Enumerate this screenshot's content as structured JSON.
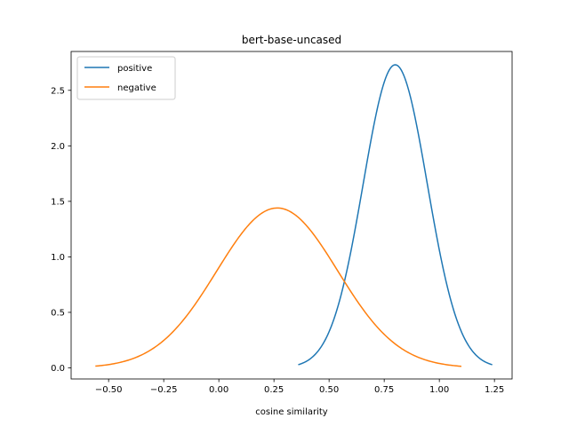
{
  "chart_data": {
    "type": "line",
    "title": "bert-base-uncased",
    "xlabel": "cosine similarity",
    "ylabel": "",
    "xlim": [
      -0.67,
      1.33
    ],
    "ylim": [
      -0.1,
      2.85
    ],
    "xticks": [
      -0.5,
      -0.25,
      0.0,
      0.25,
      0.5,
      0.75,
      1.0,
      1.25
    ],
    "xtick_labels": [
      "−0.50",
      "−0.25",
      "0.00",
      "0.25",
      "0.50",
      "0.75",
      "1.00",
      "1.25"
    ],
    "yticks": [
      0.0,
      0.5,
      1.0,
      1.5,
      2.0,
      2.5
    ],
    "ytick_labels": [
      "0.0",
      "0.5",
      "1.0",
      "1.5",
      "2.0",
      "2.5"
    ],
    "grid": false,
    "legend_position": "top-left",
    "series": [
      {
        "name": "positive",
        "color": "#1f77b4",
        "x_range": [
          0.36,
          1.24
        ],
        "peak_x": 0.8,
        "peak_y": 2.73,
        "std": 0.1455
      },
      {
        "name": "negative",
        "color": "#ff7f0e",
        "x_range": [
          -0.56,
          1.1
        ],
        "peak_x": 0.265,
        "peak_y": 1.44,
        "std": 0.2743
      }
    ]
  }
}
